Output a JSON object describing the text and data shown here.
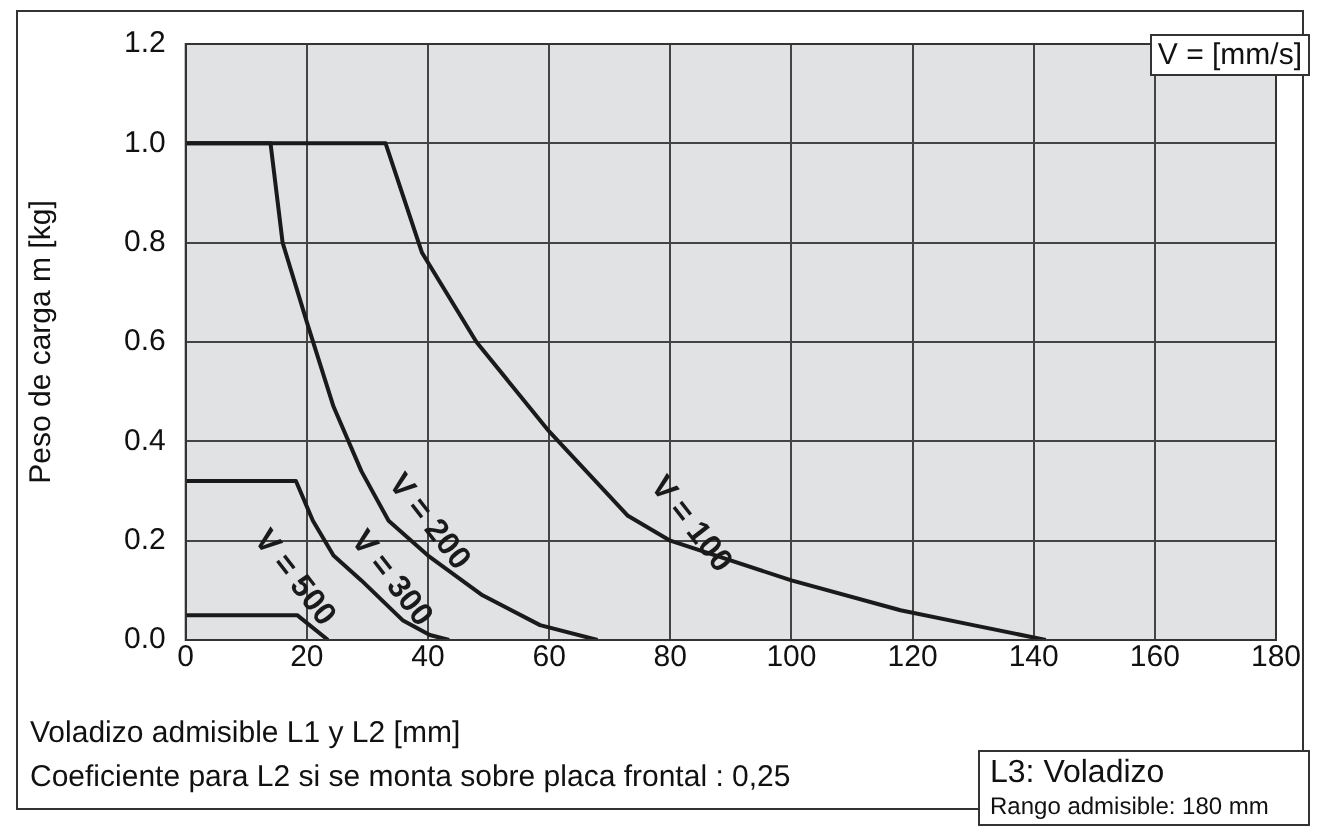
{
  "chart_data": {
    "type": "line",
    "xlabel": "Voladizo admisible L1 y L2 [mm]",
    "ylabel": "Peso de carga m [kg]",
    "xlim": [
      0,
      180
    ],
    "xticks": [
      0,
      20,
      40,
      60,
      80,
      100,
      120,
      140,
      160,
      180
    ],
    "ylim": [
      0,
      1.2
    ],
    "yticks": [
      {
        "value": 0,
        "label": "0.0"
      },
      {
        "value": 0.2,
        "label": "0.2"
      },
      {
        "value": 0.4,
        "label": "0.4"
      },
      {
        "value": 0.6,
        "label": "0.6"
      },
      {
        "value": 0.8,
        "label": "0.8"
      },
      {
        "value": 1,
        "label": "1.0"
      },
      {
        "value": 1.2,
        "label": "1.2"
      }
    ],
    "grid": true,
    "marker": "none",
    "line_style": "solid",
    "series": [
      {
        "name": "V = 100",
        "color": "#1a1a1a",
        "x": [
          0,
          33,
          39,
          48,
          60,
          73,
          80,
          100,
          118,
          130,
          142
        ],
        "values": [
          1,
          1,
          0.78,
          0.6,
          0.42,
          0.25,
          0.2,
          0.12,
          0.06,
          0.03,
          0
        ]
      },
      {
        "name": "V = 200",
        "color": "#1a1a1a",
        "x": [
          0,
          14,
          16,
          20,
          24.4,
          29,
          33.5,
          40,
          49,
          58.5,
          68
        ],
        "values": [
          1,
          1,
          0.8,
          0.64,
          0.47,
          0.34,
          0.24,
          0.17,
          0.09,
          0.03,
          0
        ]
      },
      {
        "name": "V = 300",
        "color": "#1a1a1a",
        "x": [
          0,
          18.2,
          21,
          24.4,
          29,
          35.8,
          40.3,
          43.5
        ],
        "values": [
          0.32,
          0.32,
          0.24,
          0.17,
          0.12,
          0.04,
          0.01,
          0
        ]
      },
      {
        "name": "V = 500",
        "color": "#1a1a1a",
        "x": [
          0,
          18.4,
          23.5
        ],
        "values": [
          0.05,
          0.05,
          0
        ]
      }
    ],
    "annotations": [
      "V = [mm/s]",
      "Coeficiente para L2 si se monta sobre placa frontal : 0,25",
      "L3: Voladizo",
      "Rango admisible: 180 mm"
    ]
  }
}
